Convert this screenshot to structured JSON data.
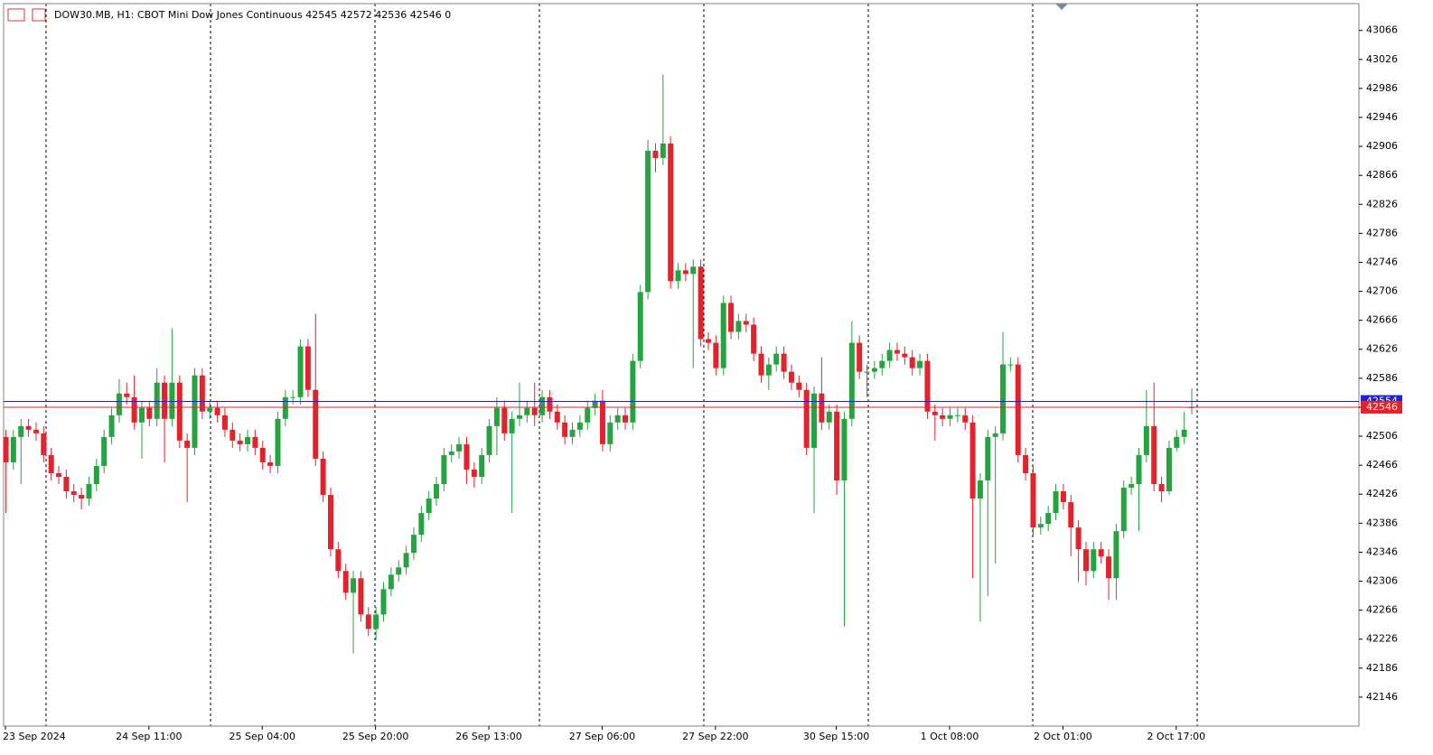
{
  "chart_data": {
    "type": "candlestick",
    "title": "DOW30.MB, H1:  CBOT Mini Dow Jones Continuous  42545 42572 42536 42546  0",
    "open": [
      42505,
      42470,
      42505,
      42520,
      42515,
      42510,
      42480,
      42455,
      42450,
      42430,
      42425,
      42420,
      42440,
      42465,
      42505,
      42535,
      42565,
      42560,
      42525,
      42545,
      42530,
      42580,
      42530,
      42580,
      42500,
      42490,
      42590,
      42540,
      42545,
      42535,
      42515,
      42500,
      42495,
      42505,
      42490,
      42470,
      42465,
      42530,
      42560,
      42560,
      42630,
      42570,
      42475,
      42425,
      42350,
      42320,
      42290,
      42310,
      42260,
      42240,
      42260,
      42295,
      42315,
      42325,
      42345,
      42370,
      42400,
      42420,
      42440,
      42480,
      42485,
      42495,
      42460,
      42450,
      42480,
      42520,
      42545,
      42510,
      42530,
      42535,
      42545,
      42535,
      42560,
      42540,
      42525,
      42505,
      42515,
      42525,
      42545,
      42555,
      42495,
      42525,
      42535,
      42525,
      42610,
      42705,
      42900,
      42890,
      42910,
      42720,
      42735,
      42730,
      42740,
      42640,
      42635,
      42600,
      42690,
      42650,
      42665,
      42660,
      42620,
      42590,
      42605,
      42620,
      42595,
      42580,
      42570,
      42490,
      42565,
      42525,
      42540,
      42445,
      42530,
      42635,
      42595,
      42595,
      42600,
      42610,
      42625,
      42620,
      42615,
      42600,
      42610,
      42540,
      42535,
      42530,
      42535,
      42535,
      42525,
      42420,
      42445,
      42505,
      42510,
      42605,
      42605,
      42480,
      42455,
      42380,
      42385,
      42400,
      42430,
      42415,
      42380,
      42350,
      42320,
      42350,
      42340,
      42310,
      42375,
      42435,
      42440,
      42480,
      42520,
      42440,
      42430,
      42490,
      42505,
      42545
    ],
    "high": [
      42515,
      42515,
      42530,
      42530,
      42525,
      42520,
      42490,
      42465,
      42460,
      42440,
      42435,
      42450,
      42475,
      42515,
      42545,
      42585,
      42580,
      42590,
      42555,
      42555,
      42600,
      42590,
      42655,
      42590,
      42510,
      42600,
      42600,
      42555,
      42555,
      42545,
      42525,
      42510,
      42515,
      42515,
      42500,
      42480,
      42540,
      42570,
      42570,
      42640,
      42640,
      42675,
      42485,
      42435,
      42360,
      42330,
      42320,
      42320,
      42270,
      42270,
      42305,
      42325,
      42335,
      42355,
      42380,
      42410,
      42430,
      42450,
      42490,
      42495,
      42505,
      42505,
      42470,
      42490,
      42530,
      42560,
      42555,
      42540,
      42580,
      42555,
      42580,
      42570,
      42570,
      42550,
      42535,
      42525,
      42535,
      42555,
      42565,
      42570,
      42535,
      42545,
      42545,
      42620,
      42715,
      42915,
      42910,
      43005,
      42920,
      42745,
      42745,
      42750,
      42750,
      42650,
      42645,
      42700,
      42700,
      42675,
      42675,
      42670,
      42630,
      42615,
      42630,
      42630,
      42605,
      42590,
      42580,
      42575,
      42615,
      42550,
      42550,
      42540,
      42665,
      42645,
      42605,
      42610,
      42620,
      42635,
      42635,
      42630,
      42625,
      42620,
      42620,
      42550,
      42545,
      42545,
      42545,
      42545,
      42535,
      42455,
      42515,
      42520,
      42650,
      42615,
      42615,
      42490,
      42465,
      42395,
      42410,
      42440,
      42440,
      42425,
      42390,
      42360,
      42360,
      42360,
      42350,
      42385,
      42445,
      42450,
      42490,
      42570,
      42580,
      42450,
      42500,
      42515,
      42540,
      42572
    ],
    "low": [
      42400,
      42460,
      42440,
      42505,
      42500,
      42470,
      42445,
      42440,
      42420,
      42415,
      42405,
      42410,
      42430,
      42455,
      42495,
      42525,
      42550,
      42515,
      42475,
      42520,
      42520,
      42470,
      42520,
      42490,
      42415,
      42480,
      42530,
      42530,
      42525,
      42505,
      42490,
      42485,
      42485,
      42480,
      42460,
      42455,
      42455,
      42520,
      42550,
      42550,
      42560,
      42465,
      42415,
      42340,
      42310,
      42280,
      42206,
      42250,
      42230,
      42225,
      42250,
      42285,
      42305,
      42315,
      42335,
      42360,
      42390,
      42410,
      42430,
      42470,
      42475,
      42440,
      42435,
      42440,
      42470,
      42480,
      42500,
      42400,
      42520,
      42525,
      42520,
      42525,
      42530,
      42515,
      42495,
      42495,
      42505,
      42515,
      42535,
      42485,
      42485,
      42515,
      42515,
      42515,
      42600,
      42695,
      42870,
      42880,
      42710,
      42710,
      42720,
      42600,
      42630,
      42625,
      42590,
      42590,
      42640,
      42640,
      42650,
      42610,
      42580,
      42570,
      42595,
      42585,
      42570,
      42560,
      42480,
      42400,
      42515,
      42515,
      42425,
      42243,
      42520,
      42585,
      42560,
      42585,
      42590,
      42600,
      42610,
      42605,
      42590,
      42590,
      42530,
      42500,
      42520,
      42520,
      42525,
      42515,
      42310,
      42250,
      42285,
      42330,
      42500,
      42595,
      42470,
      42445,
      42370,
      42370,
      42375,
      42390,
      42405,
      42340,
      42305,
      42300,
      42310,
      42330,
      42280,
      42280,
      42365,
      42425,
      42375,
      42470,
      42430,
      42415,
      42425,
      42485,
      42495,
      42536
    ],
    "close": [
      42470,
      42505,
      42520,
      42515,
      42510,
      42480,
      42455,
      42450,
      42430,
      42425,
      42420,
      42440,
      42465,
      42505,
      42535,
      42565,
      42560,
      42525,
      42545,
      42530,
      42580,
      42530,
      42580,
      42500,
      42490,
      42590,
      42540,
      42545,
      42535,
      42515,
      42500,
      42495,
      42505,
      42490,
      42470,
      42465,
      42530,
      42560,
      42560,
      42630,
      42570,
      42475,
      42425,
      42350,
      42320,
      42290,
      42310,
      42260,
      42240,
      42260,
      42295,
      42315,
      42325,
      42345,
      42370,
      42400,
      42420,
      42440,
      42480,
      42485,
      42495,
      42460,
      42450,
      42480,
      42520,
      42545,
      42510,
      42530,
      42535,
      42545,
      42535,
      42560,
      42540,
      42525,
      42505,
      42515,
      42525,
      42545,
      42555,
      42495,
      42525,
      42535,
      42525,
      42610,
      42705,
      42900,
      42890,
      42910,
      42720,
      42735,
      42730,
      42740,
      42640,
      42635,
      42600,
      42690,
      42650,
      42665,
      42660,
      42620,
      42590,
      42605,
      42620,
      42595,
      42580,
      42570,
      42490,
      42565,
      42525,
      42540,
      42445,
      42530,
      42635,
      42595,
      42595,
      42600,
      42610,
      42625,
      42620,
      42615,
      42600,
      42610,
      42540,
      42535,
      42530,
      42535,
      42535,
      42525,
      42420,
      42445,
      42505,
      42510,
      42605,
      42605,
      42480,
      42455,
      42380,
      42385,
      42400,
      42430,
      42415,
      42380,
      42350,
      42320,
      42350,
      42340,
      42310,
      42375,
      42435,
      42440,
      42480,
      42520,
      42440,
      42430,
      42490,
      42505,
      42515,
      42546
    ],
    "up_color": "#26a33f",
    "down_color": "#e3222b",
    "bid": 42546,
    "bid_color": "#e3222b",
    "ask": 42554,
    "ask_color": "#1f1fe0",
    "ylim": [
      42106,
      43103
    ],
    "yticks": [
      42146,
      42186,
      42226,
      42266,
      42306,
      42346,
      42386,
      42426,
      42466,
      42506,
      42546,
      42586,
      42626,
      42666,
      42706,
      42746,
      42786,
      42826,
      42866,
      42906,
      42946,
      42986,
      43026,
      43066
    ],
    "xticks": [
      {
        "value": 0,
        "label": "23 Sep 2024"
      },
      {
        "value": 19,
        "label": "24 Sep 11:00"
      },
      {
        "value": 34,
        "label": "25 Sep 04:00"
      },
      {
        "value": 49,
        "label": "25 Sep 20:00"
      },
      {
        "value": 64,
        "label": "26 Sep 13:00"
      },
      {
        "value": 79,
        "label": "27 Sep 06:00"
      },
      {
        "value": 94,
        "label": "27 Sep 22:00"
      },
      {
        "value": 110,
        "label": "30 Sep 15:00"
      },
      {
        "value": 125,
        "label": "1 Oct 08:00"
      },
      {
        "value": 140,
        "label": "2 Oct 01:00"
      },
      {
        "value": 155,
        "label": "2 Oct 17:00"
      }
    ],
    "grid": true
  }
}
